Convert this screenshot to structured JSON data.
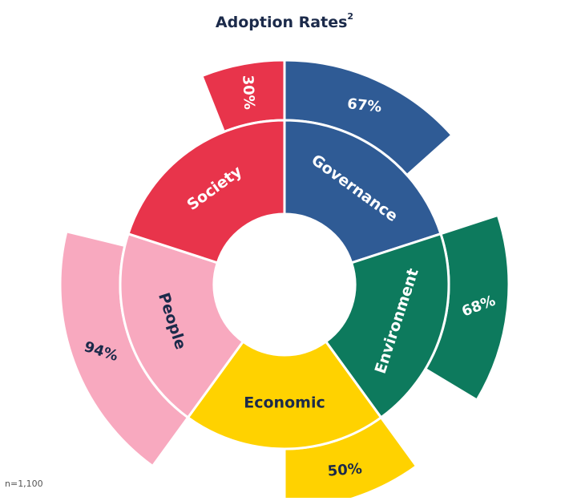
{
  "chart_data": {
    "type": "sunburst",
    "title": "Adoption Rates",
    "title_superscript": "2",
    "footnote": "n=1,100",
    "categories": [
      "Governance",
      "Environment",
      "Economic",
      "People",
      "Society"
    ],
    "values": [
      67,
      68,
      50,
      94,
      30
    ],
    "value_labels": [
      "67%",
      "68%",
      "50%",
      "94%",
      "30%"
    ],
    "colors": [
      "#2f5b95",
      "#0d7a5d",
      "#ffd200",
      "#f8a9bf",
      "#e8344b"
    ],
    "text_colors": [
      "#ffffff",
      "#ffffff",
      "#1b2a4a",
      "#1b2a4a",
      "#ffffff"
    ],
    "align": [
      "start",
      "start",
      "start",
      "start",
      "end"
    ]
  }
}
